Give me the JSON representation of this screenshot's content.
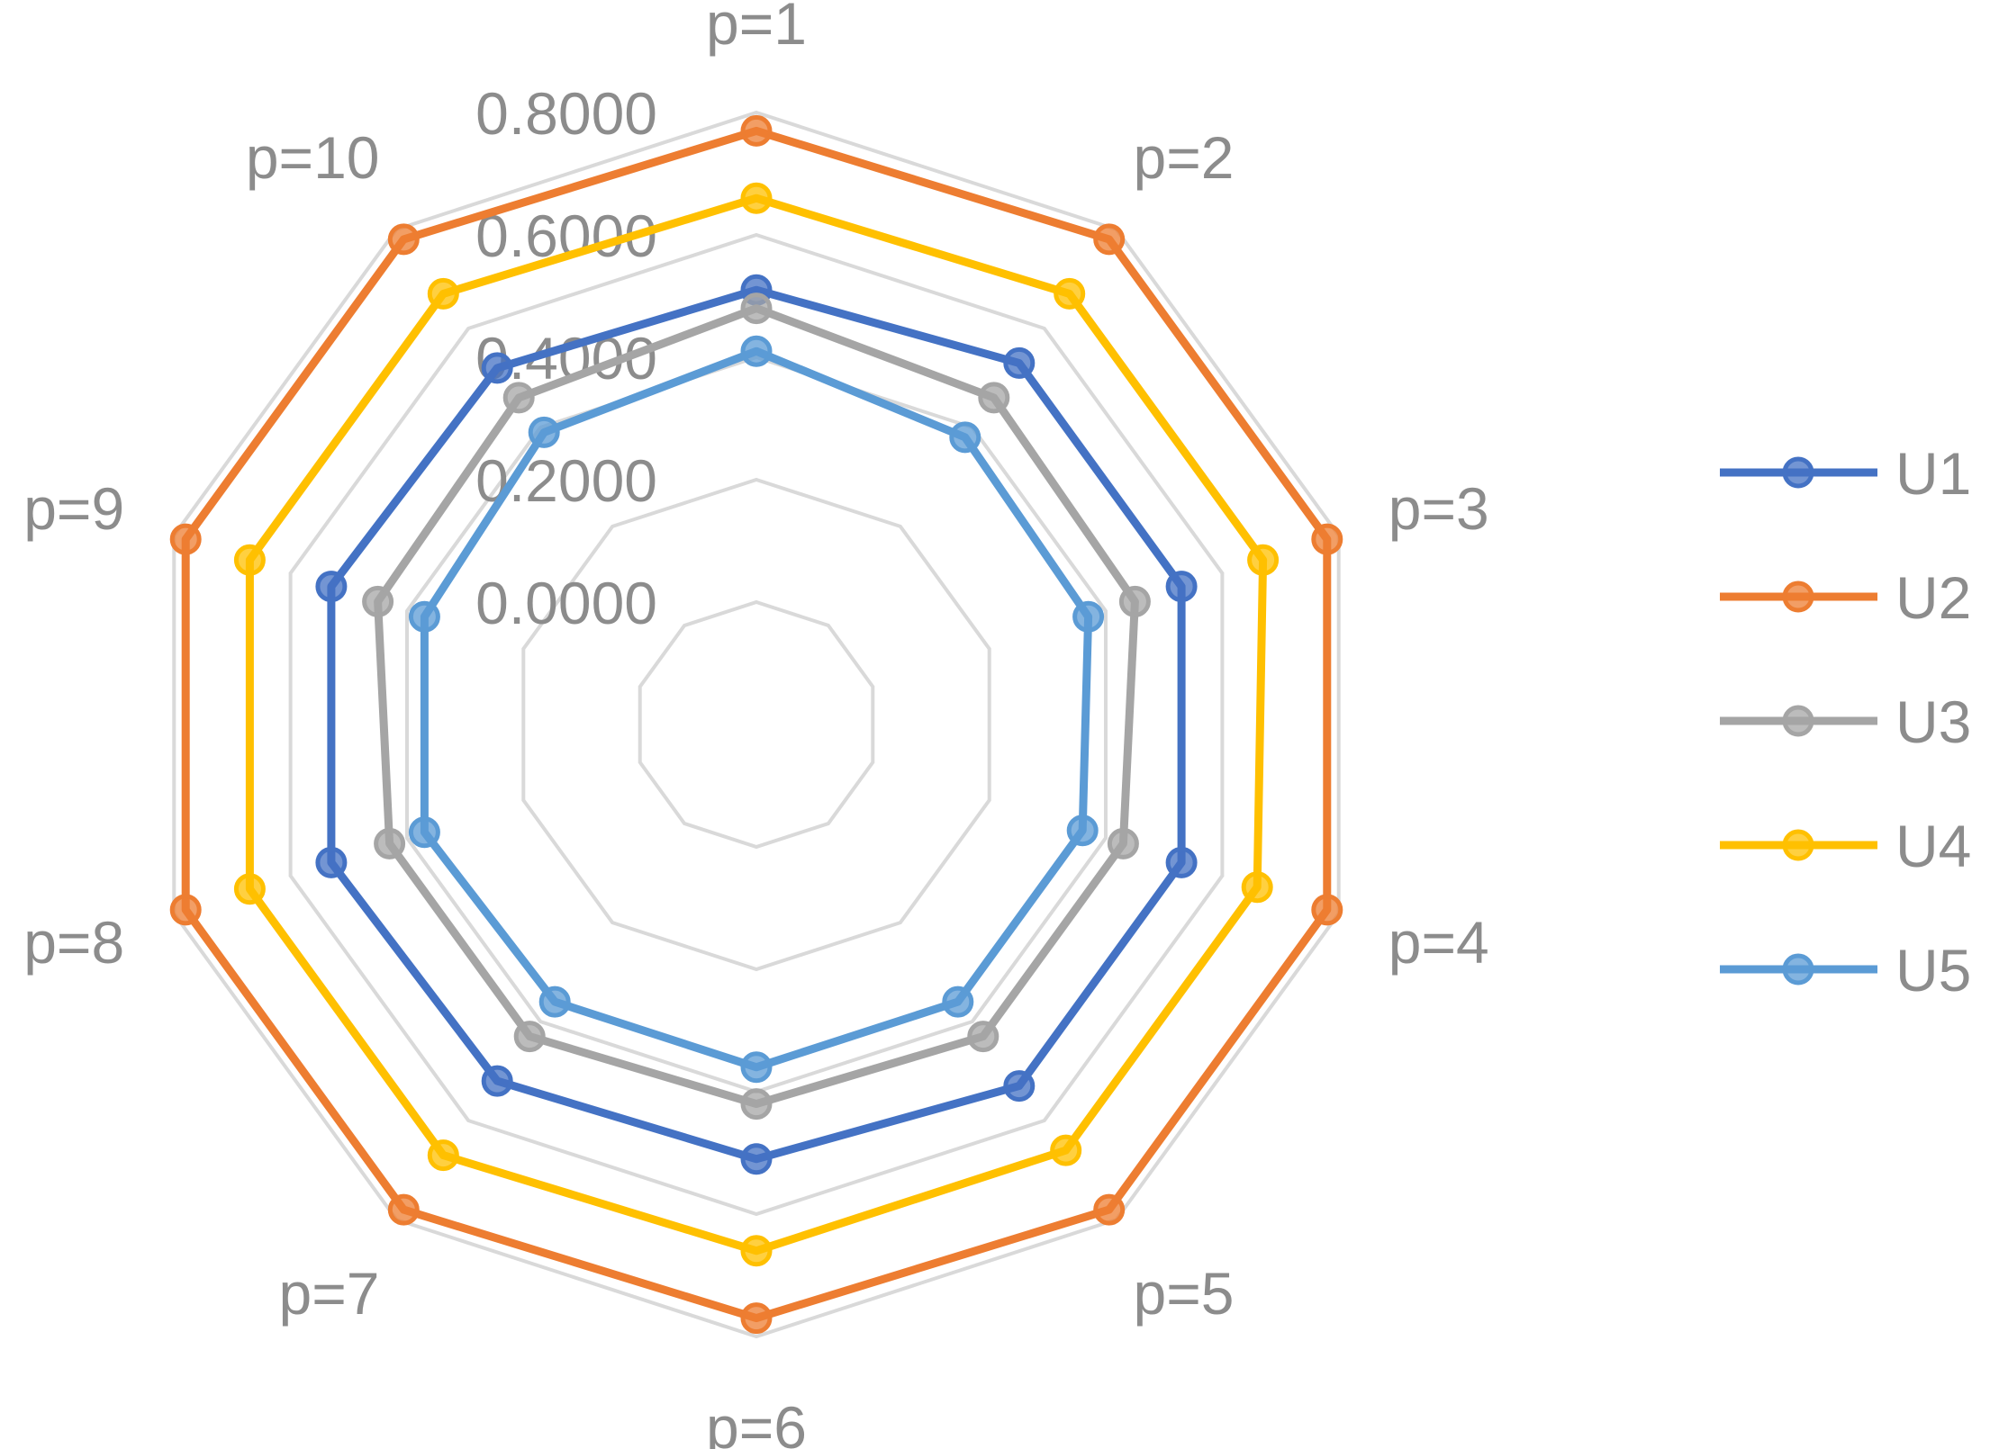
{
  "chart_data": {
    "type": "radar",
    "title": "",
    "categories": [
      "p=1",
      "p=2",
      "p=3",
      "p=4",
      "p=5",
      "p=6",
      "p=7",
      "p=8",
      "p=9",
      "p=10"
    ],
    "axis": {
      "min": -0.2,
      "max": 0.8,
      "ticks": [
        0.0,
        0.2,
        0.4,
        0.6,
        0.8
      ],
      "tick_labels": [
        "0.0000",
        "0.2000",
        "0.4000",
        "0.6000",
        "0.8000"
      ]
    },
    "grid": true,
    "legend_position": "right",
    "series": [
      {
        "name": "U1",
        "color": "#4472c4",
        "values": [
          0.51,
          0.53,
          0.53,
          0.53,
          0.53,
          0.51,
          0.52,
          0.53,
          0.53,
          0.52
        ]
      },
      {
        "name": "U2",
        "color": "#ed7d31",
        "values": [
          0.77,
          0.78,
          0.78,
          0.78,
          0.78,
          0.77,
          0.78,
          0.78,
          0.78,
          0.78
        ]
      },
      {
        "name": "U3",
        "color": "#a5a5a5",
        "values": [
          0.48,
          0.46,
          0.45,
          0.43,
          0.43,
          0.42,
          0.43,
          0.43,
          0.45,
          0.46
        ]
      },
      {
        "name": "U4",
        "color": "#ffc000",
        "values": [
          0.66,
          0.67,
          0.67,
          0.66,
          0.66,
          0.66,
          0.67,
          0.67,
          0.67,
          0.67
        ]
      },
      {
        "name": "U5",
        "color": "#5b9bd5",
        "values": [
          0.41,
          0.38,
          0.37,
          0.36,
          0.36,
          0.36,
          0.36,
          0.37,
          0.37,
          0.39
        ]
      }
    ]
  }
}
